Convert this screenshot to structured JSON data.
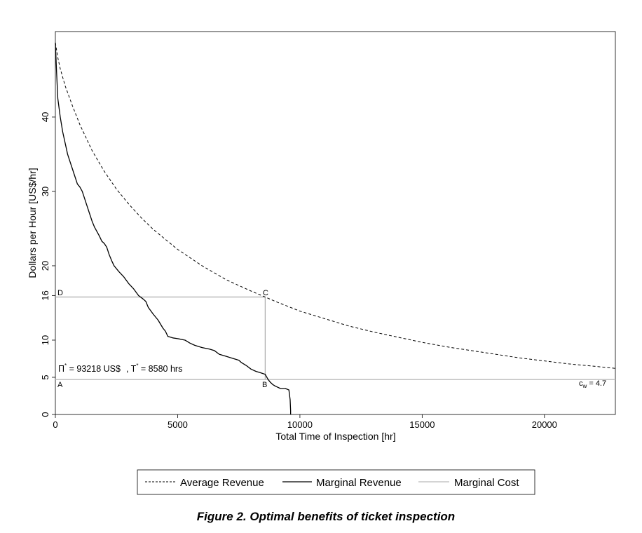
{
  "chart_data": {
    "type": "line",
    "title": "",
    "caption": "Figure 2. Optimal benefits of ticket inspection",
    "xlabel": "Total Time of Inspection [hr]",
    "ylabel": "Dollars per Hour [US$/hr]",
    "xlim": [
      0,
      22900
    ],
    "ylim": [
      0,
      51.5
    ],
    "x_ticks": [
      0,
      5000,
      10000,
      15000,
      20000
    ],
    "x_tick_labels": [
      "0",
      "5000",
      "10000",
      "15000",
      "20000"
    ],
    "y_ticks": [
      0,
      5,
      10,
      16,
      20,
      30,
      40
    ],
    "y_tick_labels": [
      "0",
      "5",
      "10",
      "16",
      "20",
      "30",
      "40"
    ],
    "grid": false,
    "legend_position": "bottom",
    "series": [
      {
        "name": "Average Revenue",
        "style": "dashed",
        "color": "#000000",
        "x": [
          0,
          100,
          200,
          400,
          700,
          1000,
          1500,
          2000,
          2500,
          3000,
          3500,
          4000,
          5000,
          6000,
          7000,
          8000,
          8580,
          9000,
          10000,
          11000,
          12000,
          13000,
          14000,
          15000,
          16000,
          17000,
          18000,
          19000,
          20000,
          21000,
          22000,
          22900
        ],
        "y": [
          50.0,
          48.0,
          46.5,
          44.2,
          41.5,
          39.0,
          35.5,
          32.7,
          30.3,
          28.3,
          26.5,
          24.9,
          22.2,
          20.0,
          18.1,
          16.6,
          15.8,
          15.2,
          13.9,
          12.9,
          11.9,
          11.1,
          10.4,
          9.7,
          9.1,
          8.6,
          8.1,
          7.6,
          7.2,
          6.8,
          6.5,
          6.2
        ]
      },
      {
        "name": "Marginal Revenue",
        "style": "solid",
        "color": "#000000",
        "x": [
          0,
          50,
          100,
          200,
          300,
          400,
          500,
          600,
          700,
          800,
          900,
          1000,
          1100,
          1200,
          1300,
          1400,
          1500,
          1600,
          1700,
          1800,
          1900,
          2000,
          2100,
          2200,
          2300,
          2400,
          2600,
          2800,
          3000,
          3200,
          3400,
          3600,
          3700,
          3800,
          4000,
          4200,
          4400,
          4500,
          4600,
          4800,
          5000,
          5300,
          5500,
          5700,
          6000,
          6300,
          6500,
          6700,
          7000,
          7300,
          7500,
          7600,
          7800,
          8000,
          8200,
          8400,
          8580,
          8700,
          8800,
          8900,
          9000,
          9200,
          9400,
          9550,
          9600,
          9620,
          9620
        ],
        "y": [
          50.0,
          46.0,
          42.5,
          40.0,
          38.0,
          36.5,
          35.0,
          34.0,
          33.0,
          32.0,
          31.0,
          30.6,
          30.0,
          29.0,
          28.0,
          27.0,
          26.0,
          25.2,
          24.6,
          24.0,
          23.3,
          23.0,
          22.5,
          21.5,
          20.7,
          20.0,
          19.2,
          18.5,
          17.6,
          16.9,
          16.0,
          15.5,
          15.2,
          14.4,
          13.5,
          12.7,
          11.6,
          11.2,
          10.5,
          10.3,
          10.2,
          10.0,
          9.6,
          9.3,
          9.0,
          8.8,
          8.6,
          8.1,
          7.8,
          7.5,
          7.3,
          7.0,
          6.6,
          6.1,
          5.8,
          5.6,
          5.4,
          4.7,
          4.3,
          4.0,
          3.8,
          3.5,
          3.5,
          3.3,
          2.0,
          0.5,
          0
        ]
      },
      {
        "name": "Marginal Cost",
        "style": "solid",
        "color": "#bbbbbb",
        "x": [
          0,
          22900
        ],
        "y": [
          4.7,
          4.7
        ]
      }
    ],
    "reference_lines": {
      "optimal_T": 8580,
      "revenue_at_optimum": 15.8,
      "cost_level": 4.7
    },
    "annotations": {
      "point_a": "A",
      "point_b": "B",
      "point_c": "C",
      "point_d": "D",
      "pi_symbol": "Π",
      "star": "*",
      "pi_value": " = 93218 US$",
      "t_symbol": ", T",
      "t_value": " = 8580 hrs",
      "cw_main": "c",
      "cw_sub": "w",
      "cw_value": " = 4.7"
    }
  }
}
